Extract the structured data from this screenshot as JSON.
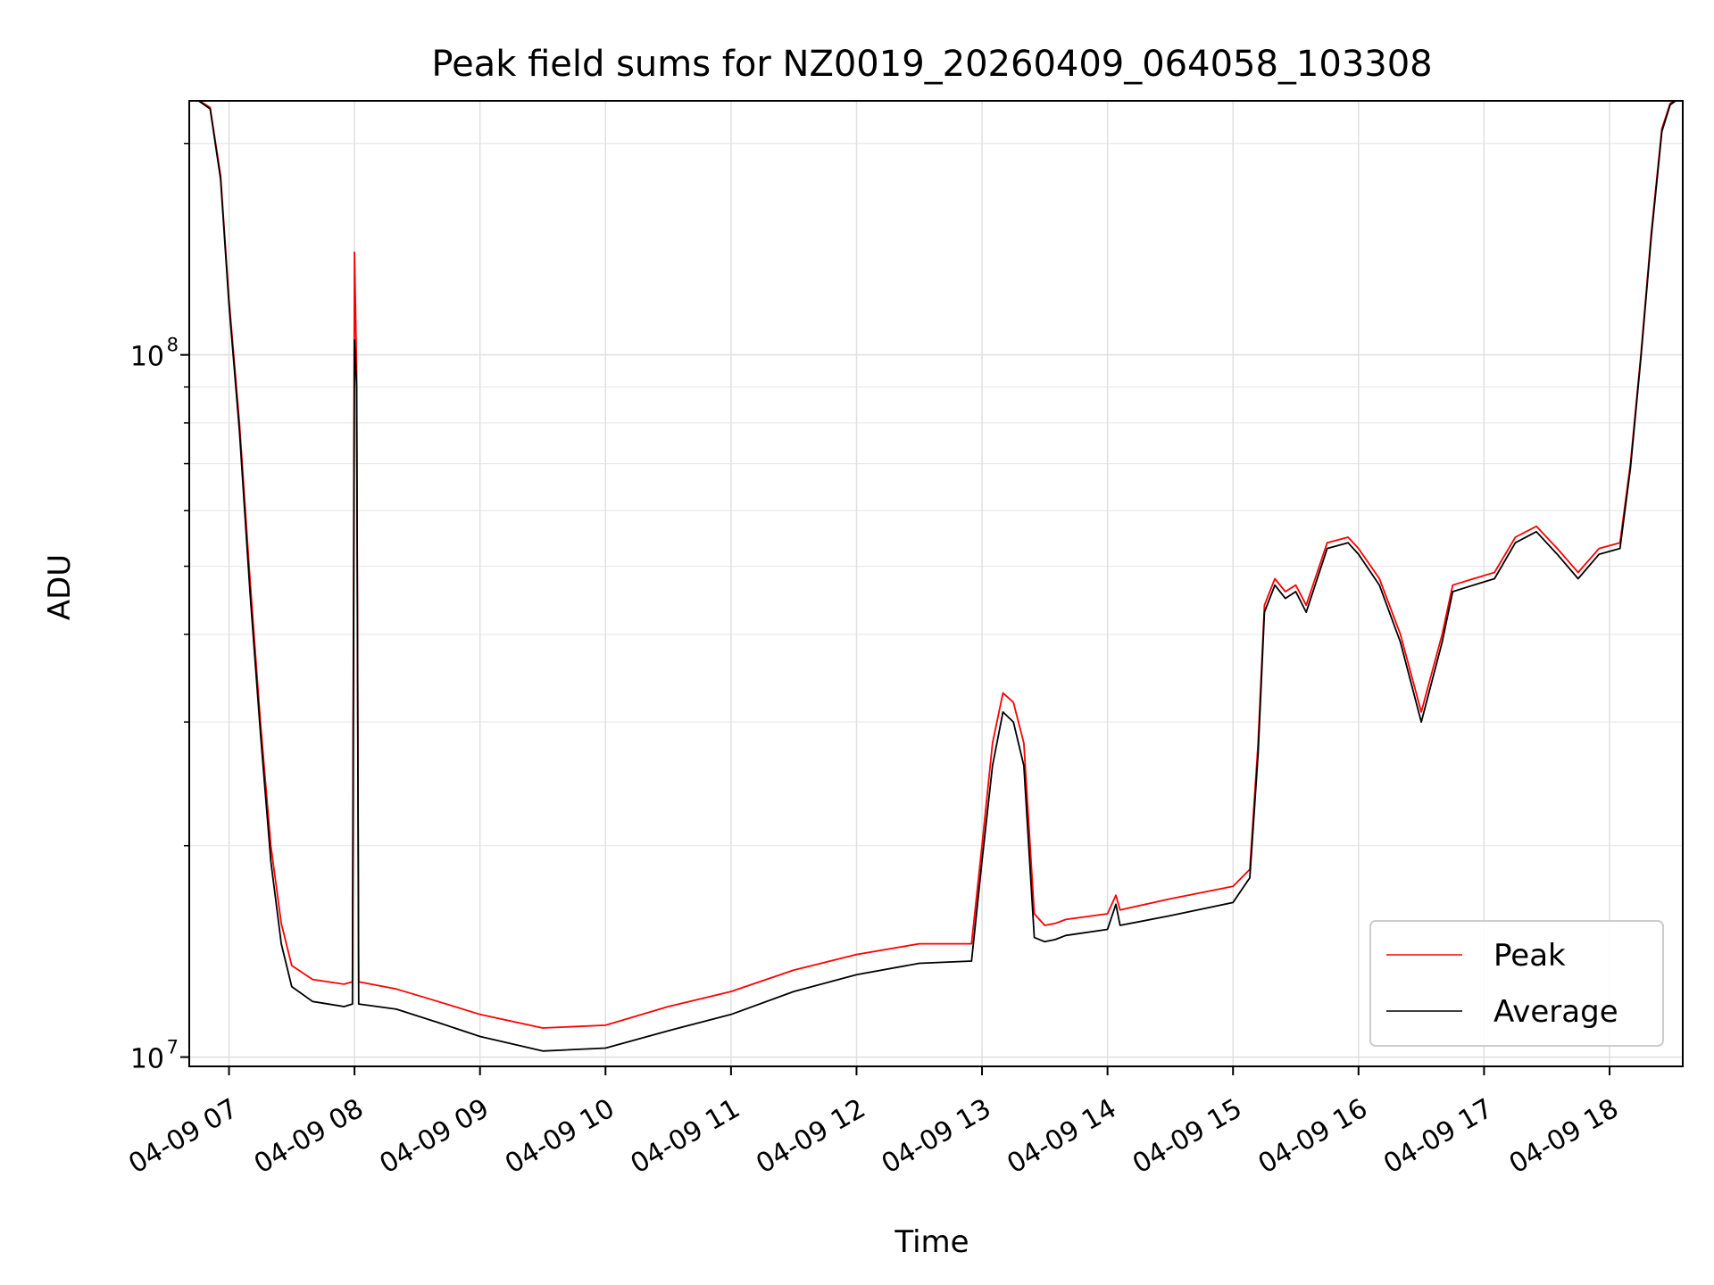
{
  "chart_data": {
    "type": "line",
    "title": "Peak field sums for NZ0019_20260409_064058_103308",
    "xlabel": "Time",
    "ylabel": "ADU",
    "y_scale": "log",
    "xlim": [
      "2026-04-09 06:41",
      "2026-04-09 18:35"
    ],
    "ylim": [
      9700000,
      230000000
    ],
    "x_ticks": [
      "04-09 07",
      "04-09 08",
      "04-09 09",
      "04-09 10",
      "04-09 11",
      "04-09 12",
      "04-09 13",
      "04-09 14",
      "04-09 15",
      "04-09 16",
      "04-09 17",
      "04-09 18"
    ],
    "y_ticks": [
      {
        "value": 10000000,
        "base": "10",
        "exp": "7"
      },
      {
        "value": 100000000,
        "base": "10",
        "exp": "8"
      }
    ],
    "grid": true,
    "legend_position": "lower-right",
    "series": [
      {
        "name": "Peak",
        "color": "#ff0000",
        "x": [
          "2026-04-09 06:41",
          "2026-04-09 06:51",
          "2026-04-09 06:56",
          "2026-04-09 07:00",
          "2026-04-09 07:05",
          "2026-04-09 07:10",
          "2026-04-09 07:15",
          "2026-04-09 07:20",
          "2026-04-09 07:25",
          "2026-04-09 07:30",
          "2026-04-09 07:40",
          "2026-04-09 07:55",
          "2026-04-09 07:59",
          "2026-04-09 08:00",
          "2026-04-09 08:01",
          "2026-04-09 08:02",
          "2026-04-09 08:20",
          "2026-04-09 08:40",
          "2026-04-09 09:00",
          "2026-04-09 09:30",
          "2026-04-09 10:00",
          "2026-04-09 10:30",
          "2026-04-09 11:00",
          "2026-04-09 11:30",
          "2026-04-09 12:00",
          "2026-04-09 12:30",
          "2026-04-09 12:55",
          "2026-04-09 13:00",
          "2026-04-09 13:05",
          "2026-04-09 13:10",
          "2026-04-09 13:15",
          "2026-04-09 13:20",
          "2026-04-09 13:25",
          "2026-04-09 13:30",
          "2026-04-09 13:35",
          "2026-04-09 13:40",
          "2026-04-09 14:00",
          "2026-04-09 14:04",
          "2026-04-09 14:06",
          "2026-04-09 14:30",
          "2026-04-09 15:00",
          "2026-04-09 15:08",
          "2026-04-09 15:12",
          "2026-04-09 15:15",
          "2026-04-09 15:20",
          "2026-04-09 15:25",
          "2026-04-09 15:30",
          "2026-04-09 15:35",
          "2026-04-09 15:45",
          "2026-04-09 15:55",
          "2026-04-09 16:00",
          "2026-04-09 16:10",
          "2026-04-09 16:20",
          "2026-04-09 16:30",
          "2026-04-09 16:40",
          "2026-04-09 16:45",
          "2026-04-09 16:55",
          "2026-04-09 17:05",
          "2026-04-09 17:15",
          "2026-04-09 17:25",
          "2026-04-09 17:35",
          "2026-04-09 17:45",
          "2026-04-09 17:55",
          "2026-04-09 18:05",
          "2026-04-09 18:10",
          "2026-04-09 18:15",
          "2026-04-09 18:20",
          "2026-04-09 18:25",
          "2026-04-09 18:29",
          "2026-04-09 18:35"
        ],
        "y": [
          235000000,
          225000000,
          180000000,
          120000000,
          80000000,
          48000000,
          30000000,
          20000000,
          15500000,
          13500000,
          12900000,
          12700000,
          12800000,
          140000000,
          95000000,
          12800000,
          12500000,
          12000000,
          11500000,
          11000000,
          11100000,
          11800000,
          12400000,
          13300000,
          14000000,
          14500000,
          14500000,
          20000000,
          28000000,
          33000000,
          32000000,
          28000000,
          16000000,
          15400000,
          15500000,
          15700000,
          16000000,
          17000000,
          16200000,
          16800000,
          17500000,
          18500000,
          28000000,
          44000000,
          48000000,
          46000000,
          47000000,
          44000000,
          54000000,
          55000000,
          53000000,
          48000000,
          40000000,
          31000000,
          40000000,
          47000000,
          48000000,
          49000000,
          55000000,
          57000000,
          53000000,
          49000000,
          53000000,
          54000000,
          70000000,
          100000000,
          150000000,
          210000000,
          228000000,
          235000000
        ]
      },
      {
        "name": "Average",
        "color": "#000000",
        "x": [
          "2026-04-09 06:41",
          "2026-04-09 06:51",
          "2026-04-09 06:56",
          "2026-04-09 07:00",
          "2026-04-09 07:05",
          "2026-04-09 07:10",
          "2026-04-09 07:15",
          "2026-04-09 07:20",
          "2026-04-09 07:25",
          "2026-04-09 07:30",
          "2026-04-09 07:40",
          "2026-04-09 07:55",
          "2026-04-09 07:59",
          "2026-04-09 08:00",
          "2026-04-09 08:01",
          "2026-04-09 08:02",
          "2026-04-09 08:20",
          "2026-04-09 08:40",
          "2026-04-09 09:00",
          "2026-04-09 09:30",
          "2026-04-09 10:00",
          "2026-04-09 10:30",
          "2026-04-09 11:00",
          "2026-04-09 11:30",
          "2026-04-09 12:00",
          "2026-04-09 12:30",
          "2026-04-09 12:55",
          "2026-04-09 13:00",
          "2026-04-09 13:05",
          "2026-04-09 13:10",
          "2026-04-09 13:15",
          "2026-04-09 13:20",
          "2026-04-09 13:25",
          "2026-04-09 13:30",
          "2026-04-09 13:35",
          "2026-04-09 13:40",
          "2026-04-09 14:00",
          "2026-04-09 14:04",
          "2026-04-09 14:06",
          "2026-04-09 14:30",
          "2026-04-09 15:00",
          "2026-04-09 15:08",
          "2026-04-09 15:12",
          "2026-04-09 15:15",
          "2026-04-09 15:20",
          "2026-04-09 15:25",
          "2026-04-09 15:30",
          "2026-04-09 15:35",
          "2026-04-09 15:45",
          "2026-04-09 15:55",
          "2026-04-09 16:00",
          "2026-04-09 16:10",
          "2026-04-09 16:20",
          "2026-04-09 16:30",
          "2026-04-09 16:40",
          "2026-04-09 16:45",
          "2026-04-09 16:55",
          "2026-04-09 17:05",
          "2026-04-09 17:15",
          "2026-04-09 17:25",
          "2026-04-09 17:35",
          "2026-04-09 17:45",
          "2026-04-09 17:55",
          "2026-04-09 18:05",
          "2026-04-09 18:10",
          "2026-04-09 18:15",
          "2026-04-09 18:20",
          "2026-04-09 18:25",
          "2026-04-09 18:29",
          "2026-04-09 18:35"
        ],
        "y": [
          235000000,
          224000000,
          178000000,
          118000000,
          78000000,
          46000000,
          29000000,
          19000000,
          14500000,
          12600000,
          12000000,
          11800000,
          11900000,
          105000000,
          90000000,
          11900000,
          11700000,
          11200000,
          10700000,
          10200000,
          10300000,
          10900000,
          11500000,
          12400000,
          13100000,
          13600000,
          13700000,
          19000000,
          26000000,
          31000000,
          30000000,
          26000000,
          14800000,
          14600000,
          14700000,
          14900000,
          15200000,
          16500000,
          15400000,
          15900000,
          16600000,
          18000000,
          27000000,
          43000000,
          47000000,
          45000000,
          46000000,
          43000000,
          53000000,
          54000000,
          52000000,
          47000000,
          39000000,
          30000000,
          39000000,
          46000000,
          47000000,
          48000000,
          54000000,
          56000000,
          52000000,
          48000000,
          52000000,
          53000000,
          69000000,
          99000000,
          148000000,
          208000000,
          227000000,
          234000000
        ]
      }
    ]
  }
}
